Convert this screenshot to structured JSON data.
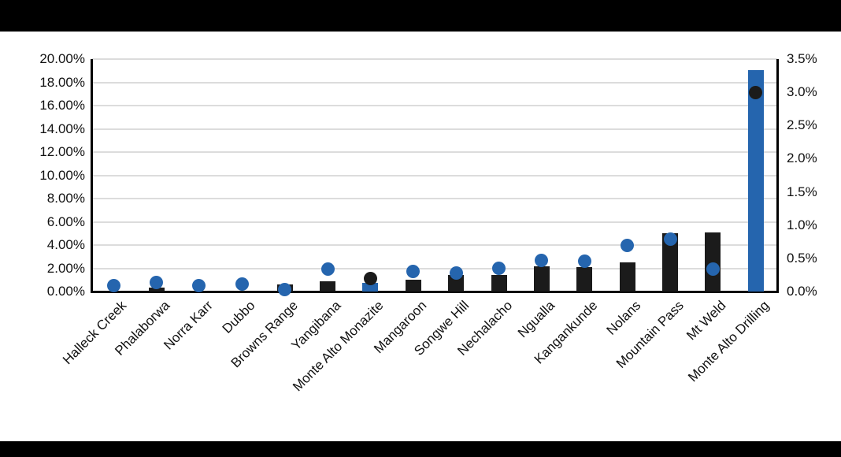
{
  "page": {
    "background": "#FFFFFF",
    "letterbox_color": "#000000",
    "title": "",
    "legend": "none"
  },
  "chart_data": {
    "type": "combo-bar-scatter",
    "title": "",
    "xlabel": "",
    "ylabel_left": "",
    "ylabel_right": "",
    "grid": true,
    "axes": {
      "left": {
        "min": 0,
        "max": 20,
        "step": 2,
        "format": "0.00%",
        "ticks": [
          "20.00%",
          "18.00%",
          "16.00%",
          "14.00%",
          "12.00%",
          "10.00%",
          "8.00%",
          "6.00%",
          "4.00%",
          "2.00%",
          "0.00%"
        ]
      },
      "right": {
        "min": 0,
        "max": 3.5,
        "step": 0.5,
        "format": "0.0%",
        "ticks": [
          "3.5%",
          "3.0%",
          "2.5%",
          "2.0%",
          "1.5%",
          "1.0%",
          "0.5%",
          "0.0%"
        ]
      }
    },
    "colors": {
      "bar_primary": "#1B1B1B",
      "marker_primary": "#2565AE",
      "bar_secondary": "#2565AE",
      "marker_secondary": "#1B1B1B",
      "gridline": "#DCDCDC",
      "axis_line": "#000000",
      "tick_text": "#111111"
    },
    "categories": [
      "Halleck Creek",
      "Phalaborwa",
      "Norra Karr",
      "Dubbo",
      "Browns Range",
      "Yangibana",
      "Monte Alto Monazite",
      "Mangaroon",
      "Songwe Hill",
      "Nechalacho",
      "Ngualla",
      "Kangankunde",
      "Nolans",
      "Mountain Pass",
      "Mt Weld",
      "Monte Alto Drilling"
    ],
    "points": [
      {
        "category": "Halleck Creek",
        "bar_value": 0.1,
        "marker_value": 0.5,
        "value_axis": "left"
      },
      {
        "category": "Phalaborwa",
        "bar_value": 0.35,
        "marker_value": 0.8,
        "value_axis": "left"
      },
      {
        "category": "Norra Karr",
        "bar_value": 0.1,
        "marker_value": 0.5,
        "value_axis": "left"
      },
      {
        "category": "Dubbo",
        "bar_value": 0.1,
        "marker_value": 0.65,
        "value_axis": "left"
      },
      {
        "category": "Browns Range",
        "bar_value": 0.6,
        "marker_value": 0.2,
        "value_axis": "left"
      },
      {
        "category": "Yangibana",
        "bar_value": 0.85,
        "marker_value": 1.9,
        "value_axis": "left"
      },
      {
        "category": "Monte Alto Monazite",
        "bar_value": 0.13,
        "marker_value": 0.19,
        "value_axis": "right"
      },
      {
        "category": "Mangaroon",
        "bar_value": 1.0,
        "marker_value": 1.7,
        "value_axis": "left"
      },
      {
        "category": "Songwe Hill",
        "bar_value": 1.4,
        "marker_value": 1.6,
        "value_axis": "left"
      },
      {
        "category": "Nechalacho",
        "bar_value": 1.45,
        "marker_value": 2.0,
        "value_axis": "left"
      },
      {
        "category": "Ngualla",
        "bar_value": 2.2,
        "marker_value": 2.7,
        "value_axis": "left"
      },
      {
        "category": "Kangankunde",
        "bar_value": 2.1,
        "marker_value": 2.6,
        "value_axis": "left"
      },
      {
        "category": "Nolans",
        "bar_value": 2.5,
        "marker_value": 4.0,
        "value_axis": "left"
      },
      {
        "category": "Mountain Pass",
        "bar_value": 5.0,
        "marker_value": 4.5,
        "value_axis": "left"
      },
      {
        "category": "Mt Weld",
        "bar_value": 5.1,
        "marker_value": 1.9,
        "value_axis": "left"
      },
      {
        "category": "Monte Alto Drilling",
        "bar_value": 3.33,
        "marker_value": 3.0,
        "value_axis": "right"
      }
    ]
  }
}
